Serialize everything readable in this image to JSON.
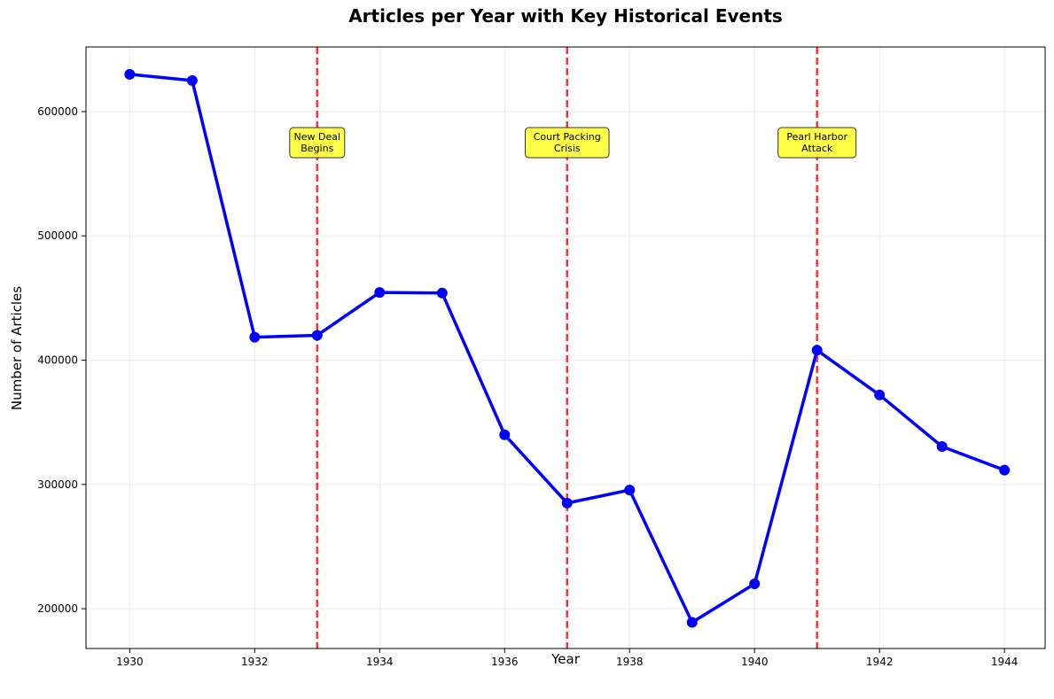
{
  "chart_data": {
    "type": "line",
    "title": "Articles per Year with Key Historical Events",
    "xlabel": "Year",
    "ylabel": "Number of Articles",
    "xlim": [
      1929.3,
      1944.65
    ],
    "ylim": [
      168000,
      652000
    ],
    "grid": true,
    "line_color": "#0000ff",
    "event_color": "#ff0000",
    "annotation_fill": "#ffff33",
    "x_ticks": [
      1930,
      1932,
      1934,
      1936,
      1938,
      1940,
      1942,
      1944
    ],
    "y_ticks": [
      200000,
      300000,
      400000,
      500000,
      600000
    ],
    "series": [
      {
        "x": [
          1930,
          1931,
          1932,
          1933,
          1934,
          1935,
          1936,
          1937,
          1938,
          1939,
          1940,
          1941,
          1942,
          1943,
          1944
        ],
        "values": [
          630000,
          625000,
          418500,
          420000,
          454500,
          454000,
          340000,
          285000,
          295500,
          189000,
          220000,
          408000,
          372000,
          330500,
          311500
        ]
      }
    ],
    "events": [
      {
        "x": 1933,
        "label_lines": [
          "New Deal",
          "Begins"
        ]
      },
      {
        "x": 1937,
        "label_lines": [
          "Court Packing",
          "Crisis"
        ]
      },
      {
        "x": 1941,
        "label_lines": [
          "Pearl Harbor",
          "Attack"
        ]
      }
    ],
    "annotation_y": 575000
  }
}
